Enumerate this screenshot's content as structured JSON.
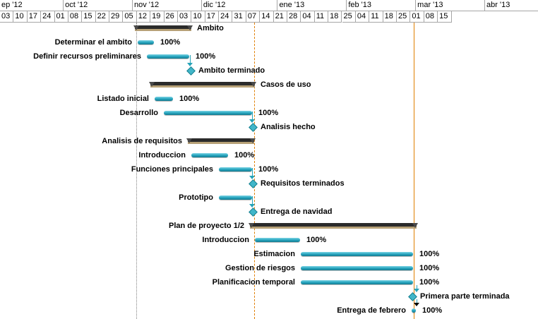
{
  "timescale": {
    "months": [
      "ep '12",
      "oct '12",
      "nov '12",
      "dic '12",
      "ene '13",
      "feb '13",
      "mar '13",
      "abr '13"
    ],
    "weeks": [
      "03",
      "10",
      "17",
      "24",
      "01",
      "08",
      "15",
      "22",
      "29",
      "05",
      "12",
      "19",
      "26",
      "03",
      "10",
      "17",
      "24",
      "31",
      "07",
      "14",
      "21",
      "28",
      "04",
      "11",
      "18",
      "25",
      "04",
      "11",
      "18",
      "25",
      "01",
      "08",
      "15"
    ]
  },
  "tasks": [
    {
      "name": "Ambito",
      "kind": "summary"
    },
    {
      "name": "Determinar el ambito",
      "kind": "task",
      "percent": "100%"
    },
    {
      "name": "Definir recursos preliminares",
      "kind": "task",
      "percent": "100%"
    },
    {
      "name": "Ambito terminado",
      "kind": "milestone"
    },
    {
      "name": "Casos de uso",
      "kind": "summary"
    },
    {
      "name": "Listado inicial",
      "kind": "task",
      "percent": "100%"
    },
    {
      "name": "Desarrollo",
      "kind": "task",
      "percent": "100%"
    },
    {
      "name": "Analisis hecho",
      "kind": "milestone"
    },
    {
      "name": "Analisis de requisitos",
      "kind": "summary"
    },
    {
      "name": "Introduccion",
      "kind": "task",
      "percent": "100%"
    },
    {
      "name": "Funciones principales",
      "kind": "task",
      "percent": "100%"
    },
    {
      "name": "Requisitos terminados",
      "kind": "milestone"
    },
    {
      "name": "Prototipo",
      "kind": "task",
      "percent": ""
    },
    {
      "name": "Entrega de navidad",
      "kind": "milestone"
    },
    {
      "name": "Plan de proyecto 1/2",
      "kind": "summary"
    },
    {
      "name": "Introduccion",
      "kind": "task",
      "percent": "100%"
    },
    {
      "name": "Estimacion",
      "kind": "task",
      "percent": "100%"
    },
    {
      "name": "Gestion de riesgos",
      "kind": "task",
      "percent": "100%"
    },
    {
      "name": "Planificacion temporal",
      "kind": "task",
      "percent": "100%"
    },
    {
      "name": "Primera parte terminada",
      "kind": "milestone"
    },
    {
      "name": "Entrega de febrero",
      "kind": "task",
      "percent": "100%"
    }
  ],
  "colors": {
    "task_bar": "#27a6c0",
    "summary_bar": "#2b2b2b",
    "milestone": "#41b6c9",
    "today_line": "#e07f00"
  }
}
